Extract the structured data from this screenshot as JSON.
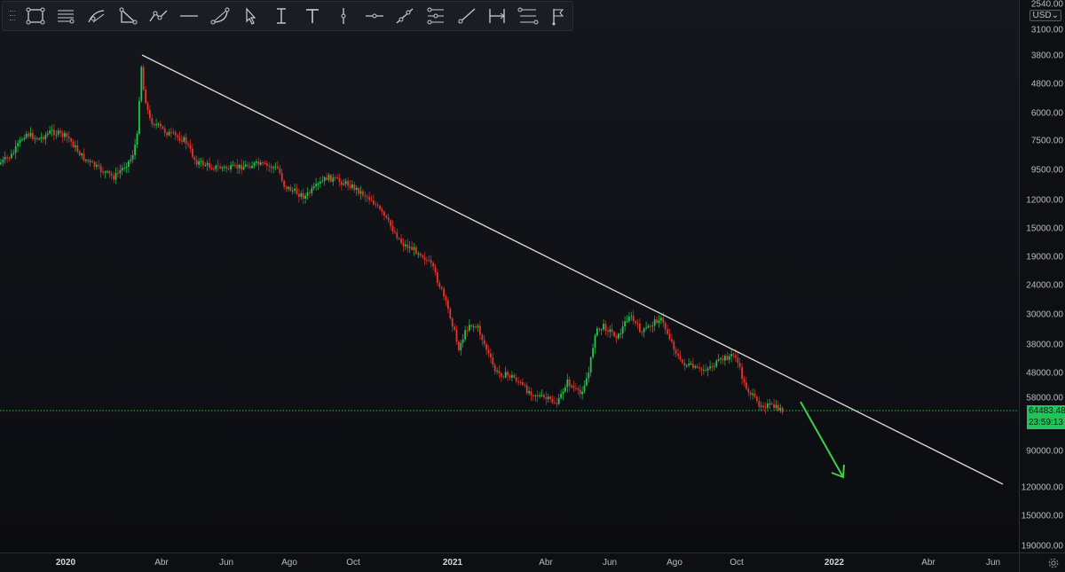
{
  "toolbar": {
    "tools": [
      {
        "name": "rectangle-tool-icon"
      },
      {
        "name": "parallel-channel-tool-icon"
      },
      {
        "name": "curve-tool-icon"
      },
      {
        "name": "triangle-tool-icon"
      },
      {
        "name": "path-tool-icon"
      },
      {
        "name": "horizontal-ray-tool-icon"
      },
      {
        "name": "arc-tool-icon"
      },
      {
        "name": "cursor-arrow-tool-icon"
      },
      {
        "name": "text-cursor-tool-icon"
      },
      {
        "name": "text-tool-icon"
      },
      {
        "name": "vertical-line-tool-icon"
      },
      {
        "name": "horizontal-line-tool-icon"
      },
      {
        "name": "trend-line-tool-icon"
      },
      {
        "name": "fib-retracement-tool-icon"
      },
      {
        "name": "ray-tool-icon"
      },
      {
        "name": "date-range-tool-icon"
      },
      {
        "name": "price-range-tool-icon"
      },
      {
        "name": "flag-tool-icon"
      }
    ]
  },
  "price_axis": {
    "currency": "USD",
    "labels": [
      "2540.00",
      "3100.00",
      "3800.00",
      "4800.00",
      "6000.00",
      "7500.00",
      "9500.00",
      "12000.00",
      "15000.00",
      "19000.00",
      "24000.00",
      "30000.00",
      "38000.00",
      "48000.00",
      "58000.00",
      "90000.00",
      "120000.00",
      "150000.00",
      "190000.00"
    ],
    "current_price": "64483.48",
    "countdown": "23:59:13"
  },
  "time_axis": {
    "labels": [
      {
        "text": "2020",
        "bold": true
      },
      {
        "text": "Abr",
        "bold": false
      },
      {
        "text": "Jun",
        "bold": false
      },
      {
        "text": "Ago",
        "bold": false
      },
      {
        "text": "Oct",
        "bold": false
      },
      {
        "text": "2021",
        "bold": true
      },
      {
        "text": "Abr",
        "bold": false
      },
      {
        "text": "Jun",
        "bold": false
      },
      {
        "text": "Ago",
        "bold": false
      },
      {
        "text": "Oct",
        "bold": false
      },
      {
        "text": "2022",
        "bold": true
      },
      {
        "text": "Abr",
        "bold": false
      },
      {
        "text": "Jun",
        "bold": false
      }
    ]
  },
  "colors": {
    "up_candle": "#26c24e",
    "down_candle": "#e0352b",
    "trend_line": "#d9d9d9",
    "arrow": "#3fd04a",
    "current_price_line": "#2bbd4f",
    "background": "#0d0e12"
  },
  "chart_data": {
    "type": "candlestick",
    "price_axis_inverted": true,
    "scale": "log",
    "series": [
      {
        "name": "",
        "points": [
          [
            "2020-01",
            9300
          ],
          [
            "2020-02",
            7600
          ],
          [
            "2020-03",
            3800
          ],
          [
            "2020-04",
            7000
          ],
          [
            "2020-05",
            9000
          ],
          [
            "2020-06",
            9400
          ],
          [
            "2020-07",
            9200
          ],
          [
            "2020-08",
            11500
          ],
          [
            "2020-09",
            10800
          ],
          [
            "2020-10",
            11500
          ],
          [
            "2020-11",
            17000
          ],
          [
            "2020-12",
            22000
          ],
          [
            "2021-01",
            33000
          ],
          [
            "2021-02",
            46000
          ],
          [
            "2021-03",
            57000
          ],
          [
            "2021-04",
            62000
          ],
          [
            "2021-05",
            38000
          ],
          [
            "2021-06",
            34000
          ],
          [
            "2021-07",
            31000
          ],
          [
            "2021-08",
            45000
          ],
          [
            "2021-09",
            44000
          ],
          [
            "2021-10",
            60000
          ],
          [
            "2021-11",
            64483.48
          ]
        ]
      }
    ],
    "current_price": 64483.48
  }
}
